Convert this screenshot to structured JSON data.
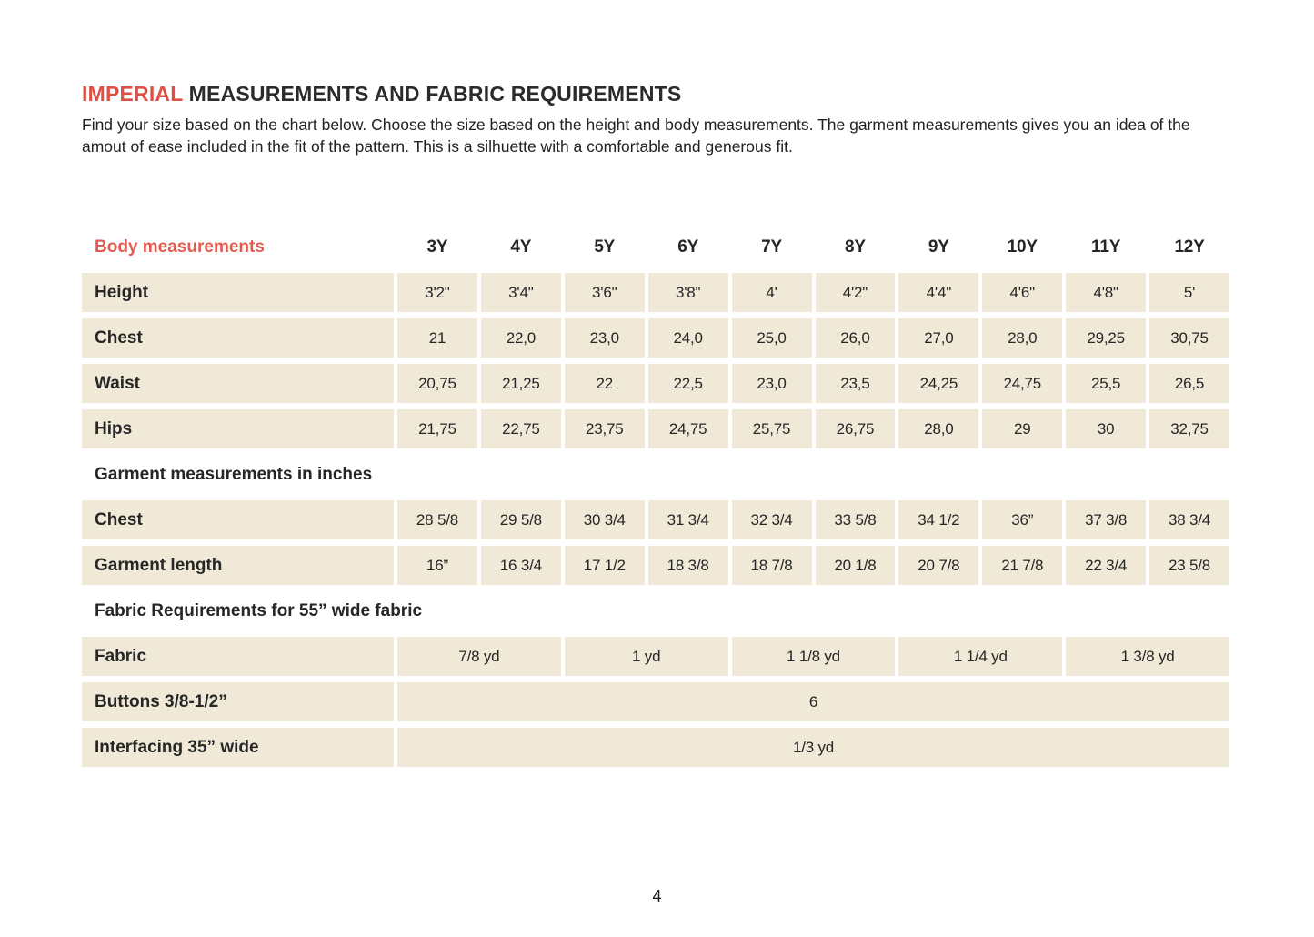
{
  "page": {
    "title_highlight": "IMPERIAL",
    "title_rest": " MEASUREMENTS AND FABRIC REQUIREMENTS",
    "intro": "Find your size based on the chart below. Choose the size based on the height and body measurements. The garment measurements gives you an idea of the amout of ease included in the fit of the pattern. This is a silhuette with a comfortable and generous fit.",
    "page_number": "4"
  },
  "colors": {
    "accent_red": "#e04f46",
    "cell_beige": "#f0e9d8",
    "text_dark": "#262626"
  },
  "table": {
    "header_label": "Body measurements",
    "sizes": [
      "3Y",
      "4Y",
      "5Y",
      "6Y",
      "7Y",
      "8Y",
      "9Y",
      "10Y",
      "11Y",
      "12Y"
    ],
    "body_rows": [
      {
        "label": "Height",
        "values": [
          "3'2\"",
          "3'4\"",
          "3'6\"",
          "3'8\"",
          "4'",
          "4'2\"",
          "4'4\"",
          "4'6\"",
          "4'8\"",
          "5'"
        ]
      },
      {
        "label": "Chest",
        "values": [
          "21",
          "22,0",
          "23,0",
          "24,0",
          "25,0",
          "26,0",
          "27,0",
          "28,0",
          "29,25",
          "30,75"
        ]
      },
      {
        "label": "Waist",
        "values": [
          "20,75",
          "21,25",
          "22",
          "22,5",
          "23,0",
          "23,5",
          "24,25",
          "24,75",
          "25,5",
          "26,5"
        ]
      },
      {
        "label": "Hips",
        "values": [
          "21,75",
          "22,75",
          "23,75",
          "24,75",
          "25,75",
          "26,75",
          "28,0",
          "29",
          "30",
          "32,75"
        ]
      }
    ],
    "garment_section_label": "Garment measurements in inches",
    "garment_rows": [
      {
        "label": "Chest",
        "values": [
          "28 5/8",
          "29 5/8",
          "30 3/4",
          "31 3/4",
          "32 3/4",
          "33 5/8",
          "34 1/2",
          "36”",
          "37 3/8",
          "38 3/4"
        ]
      },
      {
        "label": "Garment length",
        "values": [
          "16”",
          "16 3/4",
          "17 1/2",
          "18 3/8",
          "18 7/8",
          "20 1/8",
          "20 7/8",
          "21 7/8",
          "22 3/4",
          "23 5/8"
        ]
      }
    ],
    "fabric_section_label": "Fabric Requirements for  55” wide fabric",
    "fabric_row": {
      "label": "Fabric",
      "values": [
        "7/8 yd",
        "1 yd",
        "1 1/8 yd",
        "1 1/4 yd",
        "1 3/8 yd"
      ]
    },
    "buttons_row": {
      "label": "Buttons 3/8-1/2”",
      "value": "6"
    },
    "interfacing_row": {
      "label": "Interfacing  35” wide",
      "value": "1/3 yd"
    }
  }
}
